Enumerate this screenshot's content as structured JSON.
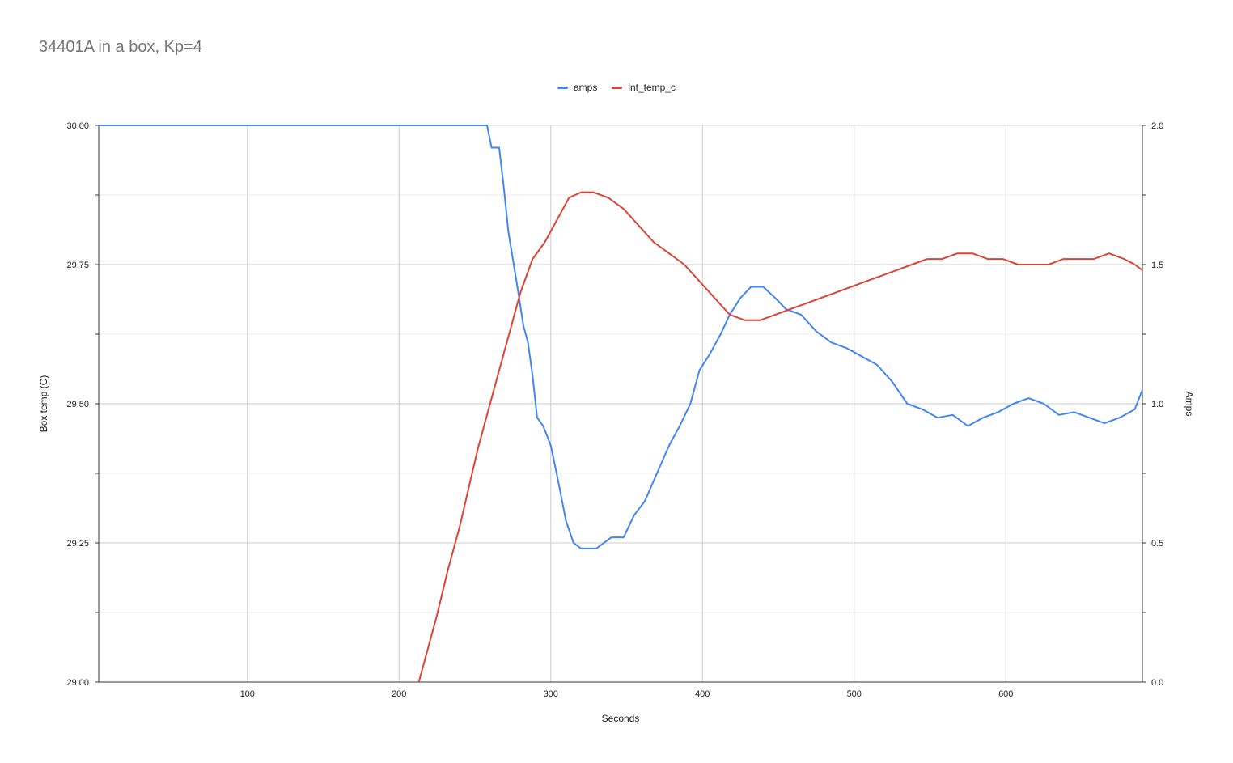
{
  "chart_data": {
    "type": "line",
    "title": "34401A in a box, Kp=4",
    "xlabel": "Seconds",
    "ylabel_left": "Box temp (C)",
    "ylabel_right": "Amps",
    "xlim": [
      2,
      690
    ],
    "ylim_left": [
      29.0,
      30.0
    ],
    "ylim_right": [
      0.0,
      2.0
    ],
    "x_ticks": [
      100,
      200,
      300,
      400,
      500,
      600
    ],
    "y_left_ticks": [
      "29.00",
      "29.25",
      "29.50",
      "29.75",
      "30.00"
    ],
    "y_right_ticks": [
      "0.0",
      "0.5",
      "1.0",
      "1.5",
      "2.0"
    ],
    "grid": true,
    "legend_position": "top",
    "series": [
      {
        "name": "amps",
        "axis": "right",
        "color": "#4285f4",
        "points": [
          [
            2,
            2.0
          ],
          [
            258,
            2.0
          ],
          [
            261,
            1.92
          ],
          [
            266,
            1.92
          ],
          [
            269,
            1.78
          ],
          [
            272,
            1.62
          ],
          [
            275,
            1.52
          ],
          [
            278,
            1.42
          ],
          [
            282,
            1.28
          ],
          [
            285,
            1.22
          ],
          [
            288,
            1.1
          ],
          [
            291,
            0.95
          ],
          [
            295,
            0.92
          ],
          [
            300,
            0.85
          ],
          [
            305,
            0.72
          ],
          [
            310,
            0.58
          ],
          [
            315,
            0.5
          ],
          [
            320,
            0.48
          ],
          [
            330,
            0.48
          ],
          [
            340,
            0.52
          ],
          [
            348,
            0.52
          ],
          [
            355,
            0.6
          ],
          [
            362,
            0.65
          ],
          [
            370,
            0.75
          ],
          [
            378,
            0.85
          ],
          [
            385,
            0.92
          ],
          [
            392,
            1.0
          ],
          [
            398,
            1.12
          ],
          [
            405,
            1.18
          ],
          [
            412,
            1.25
          ],
          [
            418,
            1.32
          ],
          [
            425,
            1.38
          ],
          [
            432,
            1.42
          ],
          [
            440,
            1.42
          ],
          [
            448,
            1.38
          ],
          [
            455,
            1.34
          ],
          [
            465,
            1.32
          ],
          [
            475,
            1.26
          ],
          [
            485,
            1.22
          ],
          [
            495,
            1.2
          ],
          [
            505,
            1.17
          ],
          [
            515,
            1.14
          ],
          [
            525,
            1.08
          ],
          [
            535,
            1.0
          ],
          [
            545,
            0.98
          ],
          [
            555,
            0.95
          ],
          [
            565,
            0.96
          ],
          [
            575,
            0.92
          ],
          [
            585,
            0.95
          ],
          [
            595,
            0.97
          ],
          [
            605,
            1.0
          ],
          [
            615,
            1.02
          ],
          [
            625,
            1.0
          ],
          [
            635,
            0.96
          ],
          [
            645,
            0.97
          ],
          [
            655,
            0.95
          ],
          [
            665,
            0.93
          ],
          [
            675,
            0.95
          ],
          [
            685,
            0.98
          ],
          [
            690,
            1.05
          ]
        ]
      },
      {
        "name": "int_temp_c",
        "axis": "left",
        "color": "#db4437",
        "points": [
          [
            213,
            29.0
          ],
          [
            218,
            29.05
          ],
          [
            225,
            29.12
          ],
          [
            232,
            29.2
          ],
          [
            240,
            29.28
          ],
          [
            246,
            29.35
          ],
          [
            252,
            29.42
          ],
          [
            258,
            29.48
          ],
          [
            265,
            29.55
          ],
          [
            272,
            29.62
          ],
          [
            280,
            29.7
          ],
          [
            288,
            29.76
          ],
          [
            296,
            29.79
          ],
          [
            304,
            29.83
          ],
          [
            312,
            29.87
          ],
          [
            320,
            29.88
          ],
          [
            328,
            29.88
          ],
          [
            338,
            29.87
          ],
          [
            348,
            29.85
          ],
          [
            358,
            29.82
          ],
          [
            368,
            29.79
          ],
          [
            378,
            29.77
          ],
          [
            388,
            29.75
          ],
          [
            398,
            29.72
          ],
          [
            408,
            29.69
          ],
          [
            418,
            29.66
          ],
          [
            428,
            29.65
          ],
          [
            438,
            29.65
          ],
          [
            448,
            29.66
          ],
          [
            458,
            29.67
          ],
          [
            468,
            29.68
          ],
          [
            478,
            29.69
          ],
          [
            488,
            29.7
          ],
          [
            498,
            29.71
          ],
          [
            508,
            29.72
          ],
          [
            518,
            29.73
          ],
          [
            528,
            29.74
          ],
          [
            538,
            29.75
          ],
          [
            548,
            29.76
          ],
          [
            558,
            29.76
          ],
          [
            568,
            29.77
          ],
          [
            578,
            29.77
          ],
          [
            588,
            29.76
          ],
          [
            598,
            29.76
          ],
          [
            608,
            29.75
          ],
          [
            618,
            29.75
          ],
          [
            628,
            29.75
          ],
          [
            638,
            29.76
          ],
          [
            648,
            29.76
          ],
          [
            658,
            29.76
          ],
          [
            668,
            29.77
          ],
          [
            678,
            29.76
          ],
          [
            685,
            29.75
          ],
          [
            690,
            29.74
          ]
        ]
      }
    ]
  }
}
